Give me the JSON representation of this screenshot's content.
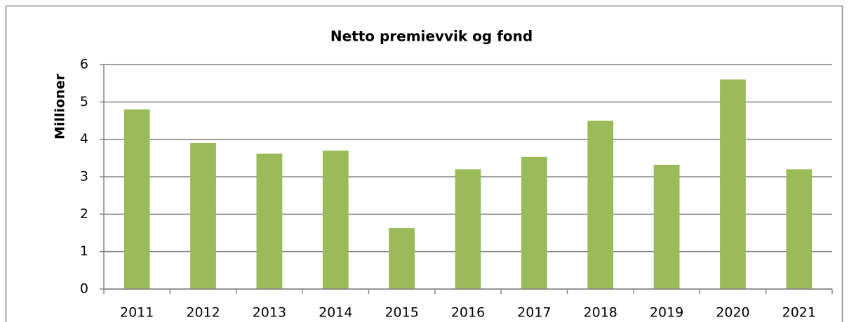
{
  "chart_data": {
    "type": "bar",
    "title": "Netto premievvik og fond",
    "y_label": "Millioner",
    "categories": [
      "2011",
      "2012",
      "2013",
      "2014",
      "2015",
      "2016",
      "2017",
      "2018",
      "2019",
      "2020",
      "2021"
    ],
    "values": [
      4.8,
      3.9,
      3.62,
      3.7,
      1.63,
      3.2,
      3.53,
      4.5,
      3.32,
      5.6,
      3.2
    ],
    "color": "#9bbb59",
    "ylim": [
      0,
      6
    ],
    "yticks": [
      0,
      1,
      2,
      3,
      4,
      5,
      6
    ],
    "grid": true
  }
}
